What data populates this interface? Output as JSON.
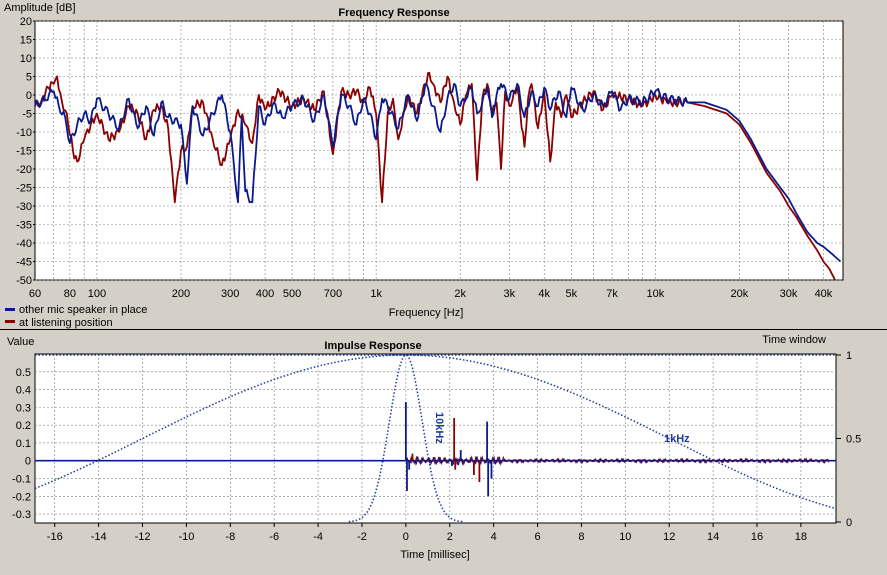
{
  "colors": {
    "background": "#d4d0c8",
    "plot_bg": "#ffffff",
    "series1": "#0a1a8c",
    "series2": "#8b0000",
    "window": "#1f3a9c"
  },
  "chart_data": [
    {
      "type": "line",
      "title": "Frequency Response",
      "ylabel": "Amplitude [dB]",
      "xlabel": "Frequency [Hz]",
      "xscale": "log",
      "xlim": [
        60,
        47000
      ],
      "ylim": [
        -50,
        20
      ],
      "grid": true,
      "legend_position": "bottom-left",
      "xtick_labels": [
        {
          "v": 60,
          "t": "60"
        },
        {
          "v": 80,
          "t": "80"
        },
        {
          "v": 100,
          "t": "100"
        },
        {
          "v": 200,
          "t": "200"
        },
        {
          "v": 300,
          "t": "300"
        },
        {
          "v": 400,
          "t": "400"
        },
        {
          "v": 500,
          "t": "500"
        },
        {
          "v": 700,
          "t": "700"
        },
        {
          "v": 1000,
          "t": "1k"
        },
        {
          "v": 2000,
          "t": "2k"
        },
        {
          "v": 3000,
          "t": "3k"
        },
        {
          "v": 4000,
          "t": "4k"
        },
        {
          "v": 5000,
          "t": "5k"
        },
        {
          "v": 7000,
          "t": "7k"
        },
        {
          "v": 10000,
          "t": "10k"
        },
        {
          "v": 20000,
          "t": "20k"
        },
        {
          "v": 30000,
          "t": "30k"
        },
        {
          "v": 40000,
          "t": "40k"
        }
      ],
      "ytick_labels": [
        "20",
        "15",
        "10",
        "5",
        "0",
        "-5",
        "-10",
        "-15",
        "-20",
        "-25",
        "-30",
        "-35",
        "-40",
        "-45",
        "-50"
      ],
      "series": [
        {
          "name": "other mic speaker in place",
          "points": [
            [
              60,
              -3
            ],
            [
              65,
              -1
            ],
            [
              70,
              1
            ],
            [
              73,
              -3
            ],
            [
              77,
              -6
            ],
            [
              80,
              -13
            ],
            [
              85,
              -8
            ],
            [
              90,
              -5
            ],
            [
              95,
              -7
            ],
            [
              100,
              -1
            ],
            [
              110,
              -5
            ],
            [
              120,
              -9
            ],
            [
              130,
              -1
            ],
            [
              140,
              -9
            ],
            [
              150,
              -3
            ],
            [
              160,
              -11
            ],
            [
              170,
              -2
            ],
            [
              180,
              -6
            ],
            [
              200,
              -8
            ],
            [
              210,
              -24
            ],
            [
              220,
              -3
            ],
            [
              240,
              -11
            ],
            [
              260,
              -5
            ],
            [
              280,
              0
            ],
            [
              300,
              -10
            ],
            [
              320,
              -29
            ],
            [
              330,
              -6
            ],
            [
              340,
              -26
            ],
            [
              360,
              -29
            ],
            [
              380,
              -3
            ],
            [
              400,
              -8
            ],
            [
              430,
              -2
            ],
            [
              460,
              -6
            ],
            [
              500,
              -3
            ],
            [
              550,
              -1
            ],
            [
              600,
              -7
            ],
            [
              650,
              0
            ],
            [
              700,
              -14
            ],
            [
              750,
              0
            ],
            [
              800,
              -3
            ],
            [
              850,
              -8
            ],
            [
              900,
              -1
            ],
            [
              950,
              -5
            ],
            [
              1000,
              -12
            ],
            [
              1050,
              -1
            ],
            [
              1100,
              -3
            ],
            [
              1200,
              -9
            ],
            [
              1300,
              0
            ],
            [
              1400,
              -7
            ],
            [
              1500,
              3
            ],
            [
              1600,
              -3
            ],
            [
              1700,
              -10
            ],
            [
              1800,
              -1
            ],
            [
              1900,
              3
            ],
            [
              2000,
              -3
            ],
            [
              2100,
              -1
            ],
            [
              2200,
              2
            ],
            [
              2300,
              -5
            ],
            [
              2400,
              -2
            ],
            [
              2500,
              2
            ],
            [
              2600,
              -6
            ],
            [
              2700,
              0
            ],
            [
              2800,
              3
            ],
            [
              3000,
              -1
            ],
            [
              3200,
              3
            ],
            [
              3400,
              -6
            ],
            [
              3600,
              1
            ],
            [
              3800,
              -3
            ],
            [
              4000,
              2
            ],
            [
              4200,
              -4
            ],
            [
              4500,
              1
            ],
            [
              4800,
              -6
            ],
            [
              5000,
              2
            ],
            [
              5500,
              -4
            ],
            [
              6000,
              0
            ],
            [
              6500,
              -3
            ],
            [
              7000,
              1
            ],
            [
              7500,
              -4
            ],
            [
              8000,
              -1
            ],
            [
              9000,
              -2
            ],
            [
              10000,
              1
            ],
            [
              11000,
              -1
            ],
            [
              13000,
              -2
            ],
            [
              15000,
              -2
            ],
            [
              18000,
              -4
            ],
            [
              20000,
              -7
            ],
            [
              22000,
              -12
            ],
            [
              25000,
              -20
            ],
            [
              28000,
              -25
            ],
            [
              30000,
              -28
            ],
            [
              32000,
              -32
            ],
            [
              35000,
              -37
            ],
            [
              38000,
              -40
            ],
            [
              40000,
              -41
            ],
            [
              43000,
              -43
            ],
            [
              46000,
              -45
            ]
          ]
        },
        {
          "name": "at listening position",
          "points": [
            [
              60,
              -3
            ],
            [
              63,
              -2
            ],
            [
              67,
              2
            ],
            [
              70,
              3
            ],
            [
              72,
              5
            ],
            [
              75,
              -2
            ],
            [
              78,
              -5
            ],
            [
              82,
              -15
            ],
            [
              85,
              -18
            ],
            [
              90,
              -12
            ],
            [
              95,
              -8
            ],
            [
              100,
              -5
            ],
            [
              110,
              -12
            ],
            [
              120,
              -10
            ],
            [
              130,
              -3
            ],
            [
              140,
              -5
            ],
            [
              150,
              -12
            ],
            [
              160,
              -4
            ],
            [
              170,
              -3
            ],
            [
              180,
              -9
            ],
            [
              190,
              -29
            ],
            [
              200,
              -15
            ],
            [
              210,
              -14
            ],
            [
              220,
              -3
            ],
            [
              240,
              -2
            ],
            [
              260,
              -12
            ],
            [
              280,
              -19
            ],
            [
              300,
              -12
            ],
            [
              320,
              -4
            ],
            [
              340,
              -8
            ],
            [
              360,
              -13
            ],
            [
              380,
              0
            ],
            [
              400,
              -4
            ],
            [
              450,
              1
            ],
            [
              500,
              -3
            ],
            [
              550,
              -1
            ],
            [
              600,
              -4
            ],
            [
              650,
              1
            ],
            [
              700,
              -16
            ],
            [
              750,
              1
            ],
            [
              800,
              0
            ],
            [
              850,
              1
            ],
            [
              900,
              -2
            ],
            [
              950,
              2
            ],
            [
              1000,
              -5
            ],
            [
              1050,
              -29
            ],
            [
              1100,
              -5
            ],
            [
              1150,
              -1
            ],
            [
              1200,
              -12
            ],
            [
              1300,
              0
            ],
            [
              1400,
              -5
            ],
            [
              1500,
              3
            ],
            [
              1550,
              6
            ],
            [
              1600,
              3
            ],
            [
              1700,
              -2
            ],
            [
              1800,
              5
            ],
            [
              1900,
              -2
            ],
            [
              2000,
              -8
            ],
            [
              2100,
              0
            ],
            [
              2200,
              3
            ],
            [
              2300,
              -23
            ],
            [
              2400,
              -1
            ],
            [
              2500,
              3
            ],
            [
              2600,
              -5
            ],
            [
              2700,
              -2
            ],
            [
              2800,
              -20
            ],
            [
              2900,
              1
            ],
            [
              3000,
              -3
            ],
            [
              3200,
              2
            ],
            [
              3400,
              -14
            ],
            [
              3500,
              -1
            ],
            [
              3600,
              3
            ],
            [
              3800,
              -9
            ],
            [
              4000,
              1
            ],
            [
              4200,
              -18
            ],
            [
              4400,
              -2
            ],
            [
              4600,
              -6
            ],
            [
              4800,
              0
            ],
            [
              5000,
              -6
            ],
            [
              5500,
              -2
            ],
            [
              6000,
              1
            ],
            [
              6500,
              -4
            ],
            [
              7000,
              0
            ],
            [
              8000,
              -1
            ],
            [
              9000,
              -3
            ],
            [
              10000,
              0
            ],
            [
              11000,
              -2
            ],
            [
              13000,
              -2
            ],
            [
              15000,
              -3
            ],
            [
              18000,
              -5
            ],
            [
              20000,
              -8
            ],
            [
              22000,
              -13
            ],
            [
              25000,
              -21
            ],
            [
              28000,
              -26
            ],
            [
              30000,
              -30
            ],
            [
              32000,
              -33
            ],
            [
              35000,
              -38
            ],
            [
              38000,
              -42
            ],
            [
              40000,
              -45
            ],
            [
              42000,
              -47
            ],
            [
              44000,
              -50
            ]
          ]
        }
      ]
    },
    {
      "type": "line",
      "title": "Impulse Response",
      "ylabel": "Value",
      "ylabel_right": "Time window",
      "xlabel": "Time [millisec]",
      "xlim": [
        -16.9,
        19.6
      ],
      "ylim": [
        -0.35,
        0.6
      ],
      "y2lim": [
        0,
        1
      ],
      "grid": true,
      "xticks": [
        -16,
        -14,
        -12,
        -10,
        -8,
        -6,
        -4,
        -2,
        0,
        2,
        4,
        6,
        8,
        10,
        12,
        14,
        16,
        18
      ],
      "ytick_labels": [
        "0.5",
        "0.4",
        "0.3",
        "0.2",
        "0.1",
        "0",
        "-0.1",
        "-0.2",
        "-0.3"
      ],
      "y2tick_labels": [
        "1",
        "0.5",
        "0"
      ],
      "window_labels": [
        "10kHz",
        "1kHz"
      ],
      "series": [
        {
          "name": "other mic speaker in place",
          "spikes": [
            [
              0.0,
              0.33
            ],
            [
              0.05,
              -0.17
            ],
            [
              0.15,
              -0.05
            ],
            [
              3.7,
              0.22
            ],
            [
              3.75,
              -0.2
            ],
            [
              3.9,
              -0.1
            ],
            [
              2.1,
              -0.03
            ],
            [
              2.5,
              0.06
            ]
          ]
        },
        {
          "name": "at listening position",
          "spikes": [
            [
              2.2,
              0.24
            ],
            [
              2.25,
              -0.05
            ],
            [
              3.1,
              -0.08
            ],
            [
              3.35,
              -0.12
            ],
            [
              0.3,
              0.04
            ]
          ]
        }
      ]
    }
  ]
}
